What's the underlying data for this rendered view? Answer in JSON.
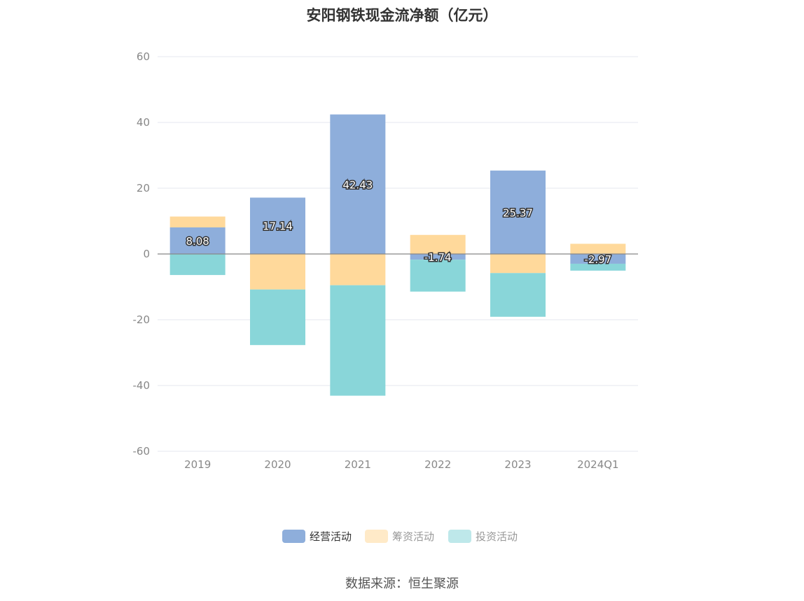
{
  "chart_data": {
    "type": "bar",
    "stacked": true,
    "title": "安阳钢铁现金流净额（亿元）",
    "categories": [
      "2019",
      "2020",
      "2021",
      "2022",
      "2023",
      "2024Q1"
    ],
    "ylim": [
      -60,
      60
    ],
    "yticks": [
      60,
      40,
      20,
      0,
      -20,
      -40,
      -60
    ],
    "grid": true,
    "legend_position": "bottom",
    "series": [
      {
        "name": "经营活动",
        "color": "#8eaedb",
        "values": [
          8.08,
          17.14,
          42.43,
          -1.74,
          25.37,
          -2.97
        ],
        "labels": [
          "8.08",
          "17.14",
          "42.43",
          "-1.74",
          "25.37",
          "-2.97"
        ]
      },
      {
        "name": "筹资活动",
        "color": "#ffd99b",
        "values": [
          3.3,
          -10.8,
          -9.5,
          5.8,
          -5.8,
          3.1
        ]
      },
      {
        "name": "投资活动",
        "color": "#89d6d9",
        "values": [
          -6.4,
          -16.9,
          -33.6,
          -9.7,
          -13.3,
          -2.1
        ]
      }
    ],
    "legend_active": [
      true,
      false,
      false
    ]
  },
  "source": "数据来源：恒生聚源"
}
